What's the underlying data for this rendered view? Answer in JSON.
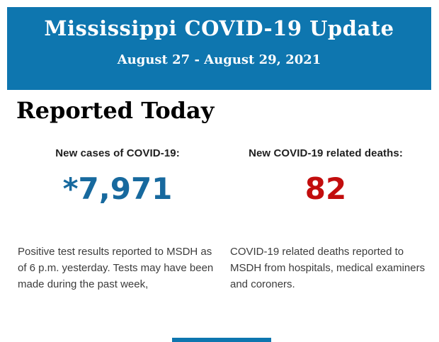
{
  "theme": {
    "banner_bg": "#0e76af",
    "banner_text": "#ffffff",
    "cases_value_color": "#17699e",
    "deaths_value_color": "#c20d0d"
  },
  "header": {
    "title": "Mississippi COVID-19 Update",
    "date_range": "August 27 - August 29, 2021"
  },
  "report": {
    "heading": "Reported Today",
    "cases": {
      "label": "New cases of COVID-19:",
      "value": "*7,971",
      "note": "Positive test results reported to MSDH as of 6 p.m. yesterday. Tests may have been made during the past week,"
    },
    "deaths": {
      "label": "New COVID-19 related deaths:",
      "value": "82",
      "note": "COVID-19 related deaths reported to MSDH from hospitals, medical examiners and coroners."
    }
  }
}
